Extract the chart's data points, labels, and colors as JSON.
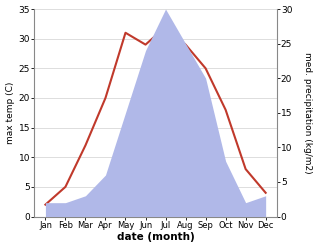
{
  "months": [
    "Jan",
    "Feb",
    "Mar",
    "Apr",
    "May",
    "Jun",
    "Jul",
    "Aug",
    "Sep",
    "Oct",
    "Nov",
    "Dec"
  ],
  "temperature": [
    2,
    5,
    12,
    20,
    31,
    29,
    32,
    29,
    25,
    18,
    8,
    4
  ],
  "precipitation": [
    2,
    2,
    3,
    6,
    15,
    24,
    30,
    25,
    20,
    8,
    2,
    3
  ],
  "temp_color": "#c0392b",
  "precip_fill_color": "#b0b8e8",
  "background_color": "#ffffff",
  "temp_ylim": [
    0,
    35
  ],
  "precip_ylim": [
    0,
    30
  ],
  "temp_yticks": [
    0,
    5,
    10,
    15,
    20,
    25,
    30,
    35
  ],
  "precip_yticks": [
    0,
    5,
    10,
    15,
    20,
    25,
    30
  ],
  "xlabel": "date (month)",
  "ylabel_left": "max temp (C)",
  "ylabel_right": "med. precipitation (kg/m2)"
}
